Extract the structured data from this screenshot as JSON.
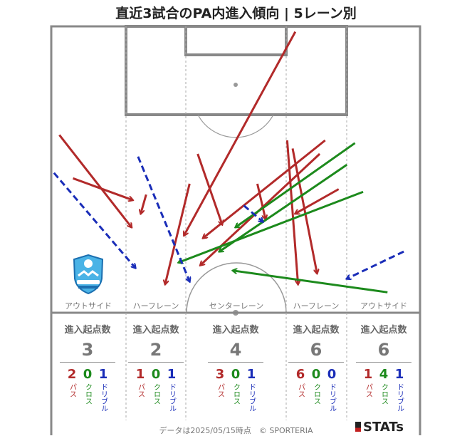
{
  "title": "直近3試合のPA内進入傾向 | 5レーン別",
  "colors": {
    "pass": "#b22a2a",
    "cross": "#1c8a1c",
    "dribble": "#1a2db8"
  },
  "lanes": [
    {
      "name": "アウトサイド",
      "stat_label": "進入起点数",
      "total": "3",
      "pass": "2",
      "cross": "0",
      "dribble": "1"
    },
    {
      "name": "ハーフレーン",
      "stat_label": "進入起点数",
      "total": "2",
      "pass": "1",
      "cross": "0",
      "dribble": "1"
    },
    {
      "name": "センターレーン",
      "stat_label": "進入起点数",
      "total": "4",
      "pass": "3",
      "cross": "0",
      "dribble": "1"
    },
    {
      "name": "ハーフレーン",
      "stat_label": "進入起点数",
      "total": "6",
      "pass": "6",
      "cross": "0",
      "dribble": "0"
    },
    {
      "name": "アウトサイド",
      "stat_label": "進入起点数",
      "total": "6",
      "pass": "1",
      "cross": "4",
      "dribble": "1"
    }
  ],
  "legend_labels": {
    "pass": "パス",
    "cross": "クロス",
    "dribble": "ドリブル"
  },
  "footer": "データは2025/05/15時点　© SPORTERIA",
  "logo_text": "STATs",
  "chart_data": {
    "type": "scatter",
    "title": "直近3試合のPA内進入傾向 | 5レーン別",
    "note": "Arrows on an attacking half-pitch; start → end in pitch coordinates (x across width 0–68 m from left touchline, y = distance from goal line in metres).",
    "arrows": [
      {
        "kind": "pass",
        "start": [
          1.5,
          20.0
        ],
        "end": [
          14.8,
          37.0
        ]
      },
      {
        "kind": "pass",
        "start": [
          4.0,
          28.0
        ],
        "end": [
          15.0,
          32.0
        ]
      },
      {
        "kind": "pass",
        "start": [
          17.5,
          31.0
        ],
        "end": [
          16.5,
          34.5
        ]
      },
      {
        "kind": "pass",
        "start": [
          25.5,
          29.0
        ],
        "end": [
          21.0,
          47.5
        ]
      },
      {
        "kind": "pass",
        "start": [
          27.0,
          23.5
        ],
        "end": [
          31.5,
          36.5
        ]
      },
      {
        "kind": "pass",
        "start": [
          45.0,
          1.0
        ],
        "end": [
          24.5,
          38.5
        ]
      },
      {
        "kind": "pass",
        "start": [
          38.0,
          29.0
        ],
        "end": [
          39.5,
          35.5
        ]
      },
      {
        "kind": "pass",
        "start": [
          49.5,
          23.5
        ],
        "end": [
          27.5,
          44.0
        ]
      },
      {
        "kind": "pass",
        "start": [
          50.5,
          21.0
        ],
        "end": [
          28.0,
          39.0
        ]
      },
      {
        "kind": "pass",
        "start": [
          43.5,
          21.0
        ],
        "end": [
          45.5,
          47.5
        ]
      },
      {
        "kind": "pass",
        "start": [
          44.5,
          22.5
        ],
        "end": [
          49.0,
          45.5
        ]
      },
      {
        "kind": "pass",
        "start": [
          53.0,
          30.0
        ],
        "end": [
          45.0,
          34.5
        ]
      },
      {
        "kind": "cross",
        "start": [
          62.0,
          49.0
        ],
        "end": [
          33.5,
          45.0
        ]
      },
      {
        "kind": "cross",
        "start": [
          57.5,
          30.5
        ],
        "end": [
          23.5,
          43.5
        ]
      },
      {
        "kind": "cross",
        "start": [
          54.5,
          25.5
        ],
        "end": [
          31.0,
          41.5
        ]
      },
      {
        "kind": "cross",
        "start": [
          56.0,
          21.5
        ],
        "end": [
          34.0,
          37.0
        ]
      },
      {
        "kind": "dribble",
        "start": [
          0.5,
          27.0
        ],
        "end": [
          15.5,
          44.5
        ]
      },
      {
        "kind": "dribble",
        "start": [
          16.0,
          24.0
        ],
        "end": [
          25.5,
          47.0
        ]
      },
      {
        "kind": "dribble",
        "start": [
          35.5,
          33.0
        ],
        "end": [
          39.0,
          36.0
        ]
      },
      {
        "kind": "dribble",
        "start": [
          65.0,
          41.5
        ],
        "end": [
          54.5,
          46.5
        ]
      }
    ]
  }
}
